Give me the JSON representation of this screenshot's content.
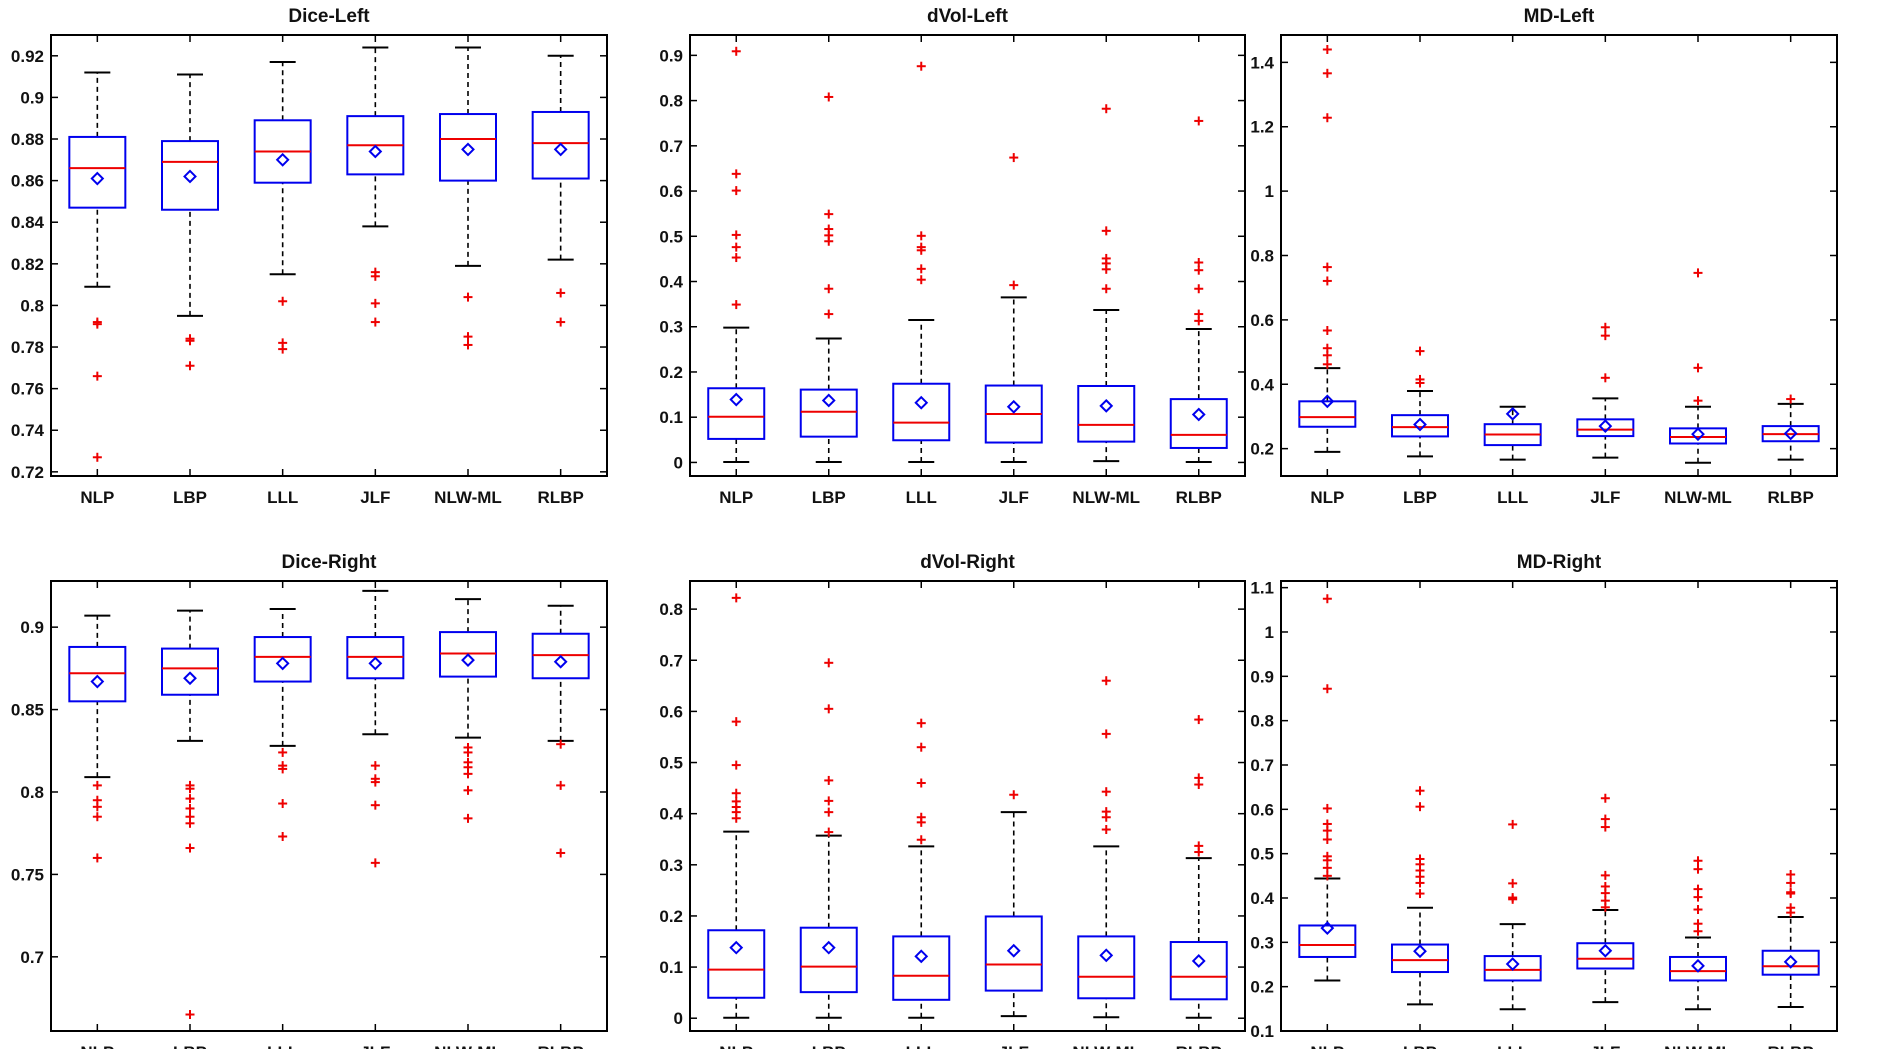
{
  "chart_data": [
    {
      "type": "boxplot",
      "title": "Dice-Left",
      "categories": [
        "NLP",
        "LBP",
        "LLL",
        "JLF",
        "NLW-ML",
        "RLBP"
      ],
      "yticks": [
        0.72,
        0.74,
        0.76,
        0.78,
        0.8,
        0.82,
        0.84,
        0.86,
        0.88,
        0.9,
        0.92
      ],
      "ytick_labels": [
        "0.72",
        "0.74",
        "0.76",
        "0.78",
        "0.8",
        "0.82",
        "0.84",
        "0.86",
        "0.88",
        "0.9",
        "0.92"
      ],
      "ylim": [
        0.718,
        0.93
      ],
      "boxes": [
        {
          "low": 0.809,
          "q1": 0.847,
          "median": 0.866,
          "q3": 0.881,
          "high": 0.912,
          "mean": 0.861,
          "outliers": [
            0.792,
            0.791,
            0.766,
            0.727
          ]
        },
        {
          "low": 0.795,
          "q1": 0.846,
          "median": 0.869,
          "q3": 0.879,
          "high": 0.911,
          "mean": 0.862,
          "outliers": [
            0.784,
            0.783,
            0.771
          ]
        },
        {
          "low": 0.815,
          "q1": 0.859,
          "median": 0.874,
          "q3": 0.889,
          "high": 0.917,
          "mean": 0.87,
          "outliers": [
            0.802,
            0.782,
            0.779
          ]
        },
        {
          "low": 0.838,
          "q1": 0.863,
          "median": 0.877,
          "q3": 0.891,
          "high": 0.924,
          "mean": 0.874,
          "outliers": [
            0.816,
            0.814,
            0.801,
            0.792
          ]
        },
        {
          "low": 0.819,
          "q1": 0.86,
          "median": 0.88,
          "q3": 0.892,
          "high": 0.924,
          "mean": 0.875,
          "outliers": [
            0.804,
            0.785,
            0.781
          ]
        },
        {
          "low": 0.822,
          "q1": 0.861,
          "median": 0.878,
          "q3": 0.893,
          "high": 0.92,
          "mean": 0.875,
          "outliers": [
            0.806,
            0.792
          ]
        }
      ]
    },
    {
      "type": "boxplot",
      "title": "dVol-Left",
      "categories": [
        "NLP",
        "LBP",
        "LLL",
        "JLF",
        "NLW-ML",
        "RLBP"
      ],
      "yticks": [
        0,
        0.1,
        0.2,
        0.3,
        0.4,
        0.5,
        0.6,
        0.7,
        0.8,
        0.9
      ],
      "ytick_labels": [
        "0",
        "0.1",
        "0.2",
        "0.3",
        "0.4",
        "0.5",
        "0.6",
        "0.7",
        "0.8",
        "0.9"
      ],
      "ylim": [
        -0.03,
        0.945
      ],
      "boxes": [
        {
          "low": 0.001,
          "q1": 0.052,
          "median": 0.101,
          "q3": 0.164,
          "high": 0.298,
          "mean": 0.139,
          "outliers": [
            0.349,
            0.453,
            0.476,
            0.503,
            0.601,
            0.638,
            0.909
          ]
        },
        {
          "low": 0.001,
          "q1": 0.057,
          "median": 0.112,
          "q3": 0.161,
          "high": 0.274,
          "mean": 0.137,
          "outliers": [
            0.328,
            0.384,
            0.489,
            0.502,
            0.516,
            0.549,
            0.808
          ]
        },
        {
          "low": 0.001,
          "q1": 0.049,
          "median": 0.088,
          "q3": 0.174,
          "high": 0.315,
          "mean": 0.132,
          "outliers": [
            0.404,
            0.428,
            0.469,
            0.476,
            0.501,
            0.876
          ]
        },
        {
          "low": 0.001,
          "q1": 0.044,
          "median": 0.107,
          "q3": 0.17,
          "high": 0.365,
          "mean": 0.123,
          "outliers": [
            0.392,
            0.674
          ]
        },
        {
          "low": 0.003,
          "q1": 0.046,
          "median": 0.083,
          "q3": 0.169,
          "high": 0.337,
          "mean": 0.125,
          "outliers": [
            0.384,
            0.427,
            0.44,
            0.451,
            0.512,
            0.782
          ]
        },
        {
          "low": 0.001,
          "q1": 0.032,
          "median": 0.061,
          "q3": 0.14,
          "high": 0.295,
          "mean": 0.106,
          "outliers": [
            0.313,
            0.328,
            0.384,
            0.425,
            0.442,
            0.755
          ]
        }
      ]
    },
    {
      "type": "boxplot",
      "title": "MD-Left",
      "categories": [
        "NLP",
        "LBP",
        "LLL",
        "JLF",
        "NLW-ML",
        "RLBP"
      ],
      "yticks": [
        0.2,
        0.4,
        0.6,
        0.8,
        1,
        1.2,
        1.4
      ],
      "ytick_labels": [
        "0.2",
        "0.4",
        "0.6",
        "0.8",
        "1",
        "1.2",
        "1.4"
      ],
      "ylim": [
        0.115,
        1.485
      ],
      "boxes": [
        {
          "low": 0.19,
          "q1": 0.268,
          "median": 0.298,
          "q3": 0.347,
          "high": 0.45,
          "mean": 0.347,
          "outliers": [
            0.462,
            0.49,
            0.512,
            0.567,
            0.721,
            0.764,
            1.228,
            1.366,
            1.44
          ]
        },
        {
          "low": 0.176,
          "q1": 0.238,
          "median": 0.267,
          "q3": 0.304,
          "high": 0.379,
          "mean": 0.275,
          "outliers": [
            0.404,
            0.415,
            0.503
          ]
        },
        {
          "low": 0.166,
          "q1": 0.211,
          "median": 0.244,
          "q3": 0.276,
          "high": 0.33,
          "mean": 0.308,
          "outliers": []
        },
        {
          "low": 0.172,
          "q1": 0.239,
          "median": 0.259,
          "q3": 0.291,
          "high": 0.356,
          "mean": 0.27,
          "outliers": [
            0.42,
            0.551,
            0.577
          ]
        },
        {
          "low": 0.156,
          "q1": 0.216,
          "median": 0.236,
          "q3": 0.263,
          "high": 0.33,
          "mean": 0.245,
          "outliers": [
            0.349,
            0.451,
            0.746
          ]
        },
        {
          "low": 0.166,
          "q1": 0.223,
          "median": 0.245,
          "q3": 0.27,
          "high": 0.339,
          "mean": 0.247,
          "outliers": [
            0.354
          ]
        }
      ]
    },
    {
      "type": "boxplot",
      "title": "Dice-Right",
      "categories": [
        "NLP",
        "LBP",
        "LLL",
        "JLF",
        "NLW-ML",
        "RLBP"
      ],
      "yticks": [
        0.7,
        0.75,
        0.8,
        0.85,
        0.9
      ],
      "ytick_labels": [
        "0.7",
        "0.75",
        "0.8",
        "0.85",
        "0.9"
      ],
      "ylim": [
        0.655,
        0.928
      ],
      "boxes": [
        {
          "low": 0.809,
          "q1": 0.855,
          "median": 0.872,
          "q3": 0.888,
          "high": 0.907,
          "mean": 0.867,
          "outliers": [
            0.804,
            0.795,
            0.791,
            0.785,
            0.76
          ]
        },
        {
          "low": 0.831,
          "q1": 0.859,
          "median": 0.875,
          "q3": 0.887,
          "high": 0.91,
          "mean": 0.869,
          "outliers": [
            0.804,
            0.802,
            0.796,
            0.79,
            0.785,
            0.781,
            0.766,
            0.665
          ]
        },
        {
          "low": 0.828,
          "q1": 0.867,
          "median": 0.882,
          "q3": 0.894,
          "high": 0.911,
          "mean": 0.878,
          "outliers": [
            0.824,
            0.816,
            0.814,
            0.793,
            0.773
          ]
        },
        {
          "low": 0.835,
          "q1": 0.869,
          "median": 0.882,
          "q3": 0.894,
          "high": 0.922,
          "mean": 0.878,
          "outliers": [
            0.816,
            0.808,
            0.806,
            0.792,
            0.757
          ]
        },
        {
          "low": 0.833,
          "q1": 0.87,
          "median": 0.884,
          "q3": 0.897,
          "high": 0.917,
          "mean": 0.88,
          "outliers": [
            0.827,
            0.824,
            0.818,
            0.815,
            0.811,
            0.801,
            0.784
          ]
        },
        {
          "low": 0.831,
          "q1": 0.869,
          "median": 0.883,
          "q3": 0.896,
          "high": 0.913,
          "mean": 0.879,
          "outliers": [
            0.829,
            0.804,
            0.763
          ]
        }
      ]
    },
    {
      "type": "boxplot",
      "title": "dVol-Right",
      "categories": [
        "NLP",
        "LBP",
        "LLL",
        "JLF",
        "NLW-ML",
        "RLBP"
      ],
      "yticks": [
        0,
        0.1,
        0.2,
        0.3,
        0.4,
        0.5,
        0.6,
        0.7,
        0.8
      ],
      "ytick_labels": [
        "0",
        "0.1",
        "0.2",
        "0.3",
        "0.4",
        "0.5",
        "0.6",
        "0.7",
        "0.8"
      ],
      "ylim": [
        -0.025,
        0.855
      ],
      "boxes": [
        {
          "low": 0.001,
          "q1": 0.04,
          "median": 0.095,
          "q3": 0.172,
          "high": 0.365,
          "mean": 0.138,
          "outliers": [
            0.391,
            0.403,
            0.413,
            0.424,
            0.44,
            0.495,
            0.58,
            0.822
          ]
        },
        {
          "low": 0.001,
          "q1": 0.051,
          "median": 0.101,
          "q3": 0.177,
          "high": 0.357,
          "mean": 0.138,
          "outliers": [
            0.364,
            0.403,
            0.425,
            0.465,
            0.605,
            0.695
          ]
        },
        {
          "low": 0.001,
          "q1": 0.036,
          "median": 0.083,
          "q3": 0.16,
          "high": 0.336,
          "mean": 0.121,
          "outliers": [
            0.349,
            0.383,
            0.393,
            0.46,
            0.53,
            0.577
          ]
        },
        {
          "low": 0.004,
          "q1": 0.054,
          "median": 0.105,
          "q3": 0.199,
          "high": 0.403,
          "mean": 0.132,
          "outliers": [
            0.437
          ]
        },
        {
          "low": 0.002,
          "q1": 0.039,
          "median": 0.081,
          "q3": 0.16,
          "high": 0.336,
          "mean": 0.123,
          "outliers": [
            0.369,
            0.393,
            0.404,
            0.443,
            0.556,
            0.66
          ]
        },
        {
          "low": 0.001,
          "q1": 0.037,
          "median": 0.081,
          "q3": 0.149,
          "high": 0.313,
          "mean": 0.112,
          "outliers": [
            0.325,
            0.337,
            0.457,
            0.47,
            0.584
          ]
        }
      ]
    },
    {
      "type": "boxplot",
      "title": "MD-Right",
      "categories": [
        "NLP",
        "LBP",
        "LLL",
        "JLF",
        "NLW-ML",
        "RLBP"
      ],
      "yticks": [
        0.1,
        0.2,
        0.3,
        0.4,
        0.5,
        0.6,
        0.7,
        0.8,
        0.9,
        1,
        1.1
      ],
      "ytick_labels": [
        "0.1",
        "0.2",
        "0.3",
        "0.4",
        "0.5",
        "0.6",
        "0.7",
        "0.8",
        "0.9",
        "1",
        "1.1"
      ],
      "ylim": [
        0.1,
        1.115
      ],
      "boxes": [
        {
          "low": 0.214,
          "q1": 0.267,
          "median": 0.294,
          "q3": 0.338,
          "high": 0.444,
          "mean": 0.332,
          "outliers": [
            0.45,
            0.468,
            0.485,
            0.494,
            0.532,
            0.552,
            0.567,
            0.602,
            0.872,
            1.075
          ]
        },
        {
          "low": 0.16,
          "q1": 0.233,
          "median": 0.26,
          "q3": 0.295,
          "high": 0.378,
          "mean": 0.28,
          "outliers": [
            0.41,
            0.434,
            0.448,
            0.462,
            0.476,
            0.488,
            0.606,
            0.642
          ]
        },
        {
          "low": 0.149,
          "q1": 0.214,
          "median": 0.238,
          "q3": 0.269,
          "high": 0.341,
          "mean": 0.251,
          "outliers": [
            0.397,
            0.401,
            0.433,
            0.566
          ]
        },
        {
          "low": 0.165,
          "q1": 0.241,
          "median": 0.263,
          "q3": 0.298,
          "high": 0.373,
          "mean": 0.281,
          "outliers": [
            0.379,
            0.394,
            0.411,
            0.426,
            0.451,
            0.56,
            0.578,
            0.625
          ]
        },
        {
          "low": 0.149,
          "q1": 0.214,
          "median": 0.235,
          "q3": 0.267,
          "high": 0.311,
          "mean": 0.247,
          "outliers": [
            0.325,
            0.342,
            0.374,
            0.402,
            0.42,
            0.465,
            0.484
          ]
        },
        {
          "low": 0.154,
          "q1": 0.227,
          "median": 0.246,
          "q3": 0.281,
          "high": 0.357,
          "mean": 0.256,
          "outliers": [
            0.367,
            0.378,
            0.41,
            0.413,
            0.434,
            0.453
          ]
        }
      ]
    }
  ]
}
